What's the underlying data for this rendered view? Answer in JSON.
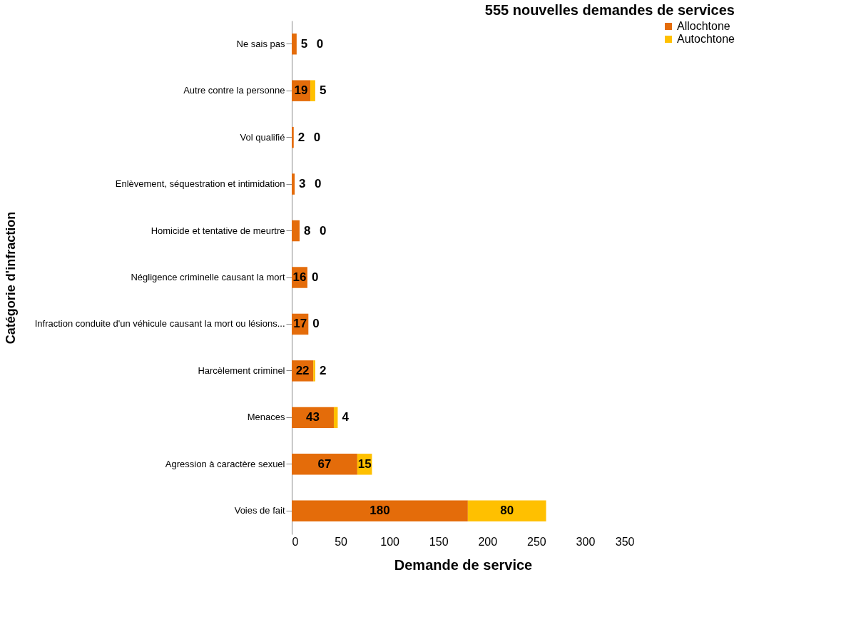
{
  "chart_data": {
    "type": "bar",
    "orientation": "horizontal",
    "stacked": true,
    "title": "555 nouvelles demandes de services",
    "xlabel": "Demande de service",
    "ylabel": "Catégorie d'infraction",
    "categories": [
      "Ne sais pas",
      "Autre contre la personne",
      "Vol qualifié",
      "Enlèvement, séquestration et intimidation",
      "Homicide et tentative de meurtre",
      "Négligence criminelle causant la mort",
      "Infraction conduite d'un véhicule causant la mort ou lésions...",
      "Harcèlement criminel",
      "Menaces",
      "Agression à caractère sexuel",
      "Voies de fait"
    ],
    "series": [
      {
        "name": "Allochtone",
        "color": "#e46c0a",
        "values": [
          5,
          19,
          2,
          3,
          8,
          16,
          17,
          22,
          43,
          67,
          180
        ]
      },
      {
        "name": "Autochtone",
        "color": "#ffc000",
        "values": [
          0,
          5,
          0,
          0,
          0,
          0,
          0,
          2,
          4,
          15,
          80
        ]
      }
    ],
    "xlim": [
      0,
      350
    ],
    "xticks": [
      0,
      50,
      100,
      150,
      200,
      250,
      300,
      350
    ],
    "grid": false,
    "legend": "right",
    "data_labels": true
  }
}
